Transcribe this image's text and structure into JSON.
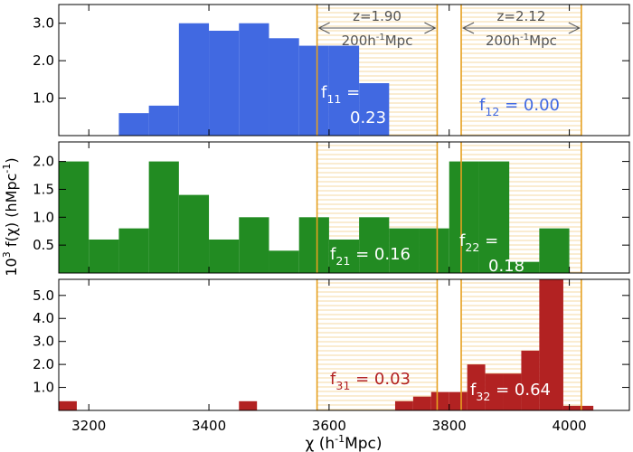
{
  "chart_data": [
    {
      "type": "bar",
      "panel": "top",
      "color": "#4169e1",
      "ylim": [
        0,
        3.5
      ],
      "yticks": [
        "1.0",
        "2.0",
        "3.0"
      ],
      "xlim": [
        3150,
        4100
      ],
      "bins": [
        {
          "x0": 3250,
          "x1": 3300,
          "value": 0.6
        },
        {
          "x0": 3300,
          "x1": 3350,
          "value": 0.8
        },
        {
          "x0": 3350,
          "x1": 3400,
          "value": 3.0
        },
        {
          "x0": 3400,
          "x1": 3450,
          "value": 2.8
        },
        {
          "x0": 3450,
          "x1": 3500,
          "value": 3.0
        },
        {
          "x0": 3500,
          "x1": 3550,
          "value": 2.6
        },
        {
          "x0": 3550,
          "x1": 3600,
          "value": 2.4
        },
        {
          "x0": 3600,
          "x1": 3650,
          "value": 2.4
        },
        {
          "x0": 3650,
          "x1": 3700,
          "value": 1.4
        }
      ],
      "annotations": [
        {
          "base": "f",
          "sub": "11",
          "rest": " =",
          "line2": "0.23",
          "color": "#ffffff"
        },
        {
          "base": "f",
          "sub": "12",
          "rest": " = 0.00",
          "color": "#4169e1"
        }
      ],
      "redshift_labels": [
        {
          "z": "z=1.90",
          "scale_base": "200h",
          "scale_exp": "-1",
          "scale_unit": "Mpc"
        },
        {
          "z": "z=2.12",
          "scale_base": "200h",
          "scale_exp": "-1",
          "scale_unit": "Mpc"
        }
      ]
    },
    {
      "type": "bar",
      "panel": "middle",
      "color": "#228b22",
      "ylim": [
        0,
        2.35
      ],
      "yticks": [
        "0.5",
        "1.0",
        "1.5",
        "2.0"
      ],
      "xlim": [
        3150,
        4100
      ],
      "bins": [
        {
          "x0": 3150,
          "x1": 3200,
          "value": 2.0
        },
        {
          "x0": 3200,
          "x1": 3250,
          "value": 0.6
        },
        {
          "x0": 3250,
          "x1": 3300,
          "value": 0.8
        },
        {
          "x0": 3300,
          "x1": 3350,
          "value": 2.0
        },
        {
          "x0": 3350,
          "x1": 3400,
          "value": 1.4
        },
        {
          "x0": 3400,
          "x1": 3450,
          "value": 0.6
        },
        {
          "x0": 3450,
          "x1": 3500,
          "value": 1.0
        },
        {
          "x0": 3500,
          "x1": 3550,
          "value": 0.4
        },
        {
          "x0": 3550,
          "x1": 3600,
          "value": 1.0
        },
        {
          "x0": 3600,
          "x1": 3650,
          "value": 0.6
        },
        {
          "x0": 3650,
          "x1": 3700,
          "value": 1.0
        },
        {
          "x0": 3700,
          "x1": 3750,
          "value": 0.8
        },
        {
          "x0": 3750,
          "x1": 3800,
          "value": 0.8
        },
        {
          "x0": 3800,
          "x1": 3850,
          "value": 2.0
        },
        {
          "x0": 3850,
          "x1": 3900,
          "value": 2.0
        },
        {
          "x0": 3900,
          "x1": 3950,
          "value": 0.2
        },
        {
          "x0": 3950,
          "x1": 4000,
          "value": 0.8
        }
      ],
      "annotations": [
        {
          "base": "f",
          "sub": "21",
          "rest": " = 0.16",
          "color": "#ffffff"
        },
        {
          "base": "f",
          "sub": "22",
          "rest": " =",
          "line2": "0.18",
          "color": "#ffffff"
        }
      ]
    },
    {
      "type": "bar",
      "panel": "bottom",
      "color": "#b22222",
      "ylim": [
        0,
        5.7
      ],
      "yticks": [
        "1.0",
        "2.0",
        "3.0",
        "4.0",
        "5.0"
      ],
      "xlim": [
        3150,
        4100
      ],
      "xticks": [
        "3200",
        "3400",
        "3600",
        "3800",
        "4000"
      ],
      "bins": [
        {
          "x0": 3150,
          "x1": 3180,
          "value": 0.4
        },
        {
          "x0": 3450,
          "x1": 3480,
          "value": 0.4
        },
        {
          "x0": 3710,
          "x1": 3740,
          "value": 0.4
        },
        {
          "x0": 3740,
          "x1": 3770,
          "value": 0.6
        },
        {
          "x0": 3770,
          "x1": 3800,
          "value": 0.8
        },
        {
          "x0": 3800,
          "x1": 3830,
          "value": 0.8
        },
        {
          "x0": 3830,
          "x1": 3860,
          "value": 2.0
        },
        {
          "x0": 3860,
          "x1": 3890,
          "value": 1.6
        },
        {
          "x0": 3890,
          "x1": 3920,
          "value": 1.6
        },
        {
          "x0": 3920,
          "x1": 3950,
          "value": 2.6
        },
        {
          "x0": 3950,
          "x1": 3990,
          "value": 5.7
        },
        {
          "x0": 3990,
          "x1": 4040,
          "value": 0.2
        }
      ],
      "annotations": [
        {
          "base": "f",
          "sub": "31",
          "rest": " = 0.03",
          "color": "#b22222"
        },
        {
          "base": "f",
          "sub": "32",
          "rest": " = 0.64",
          "color": "#ffffff"
        }
      ]
    }
  ],
  "redshift_windows": [
    {
      "x0": 3580,
      "x1": 3780
    },
    {
      "x0": 3820,
      "x1": 4020
    }
  ],
  "window_color": "#e6a020",
  "axes": {
    "xlabel_main": "χ (h",
    "xlabel_exp": "-1",
    "xlabel_tail": "Mpc)",
    "ylabel_main": "10",
    "ylabel_exp1": "3",
    "ylabel_mid": " f(χ) (hMpc",
    "ylabel_exp2": "-1",
    "ylabel_tail": ")"
  }
}
